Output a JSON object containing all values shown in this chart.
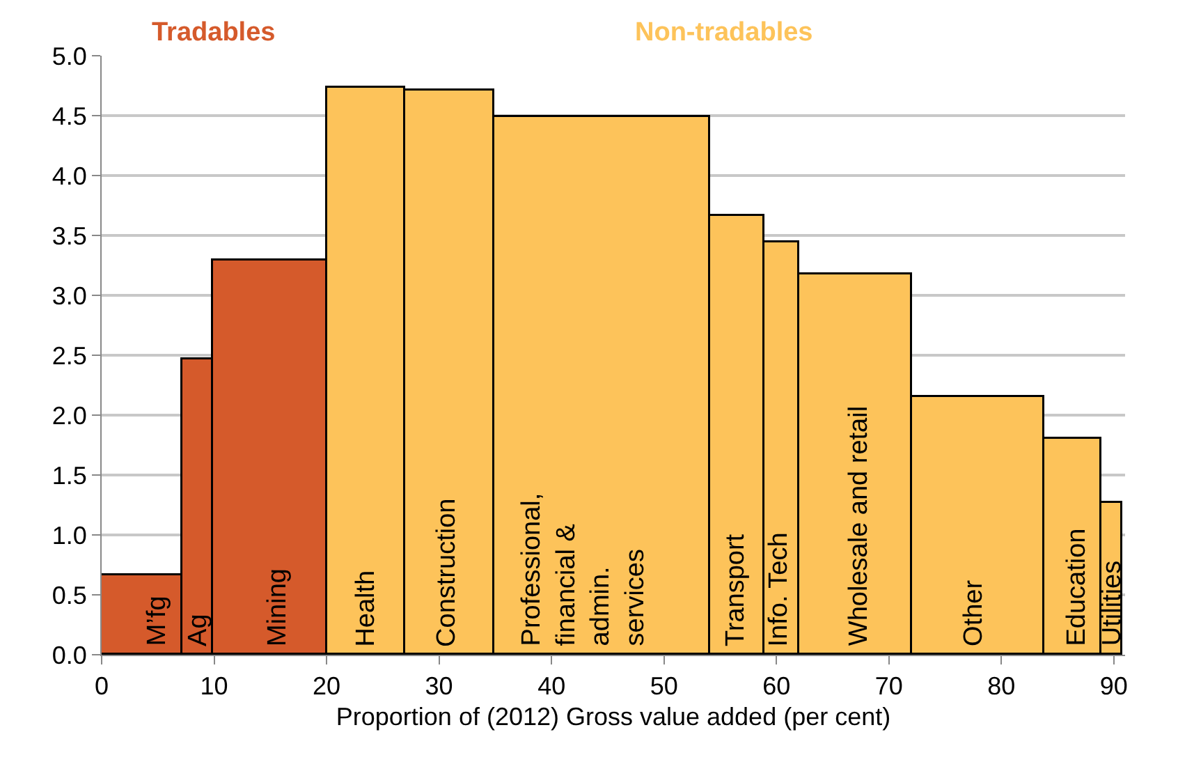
{
  "chart_data": {
    "type": "histogram",
    "bins": [
      0,
      7.2,
      9.9,
      20.0,
      27.0,
      34.9,
      54.1,
      58.9,
      62.0,
      72.0,
      83.8,
      88.9,
      90.7
    ],
    "values": [
      0.66,
      2.47,
      3.29,
      4.73,
      4.71,
      4.49,
      3.66,
      3.44,
      3.17,
      2.15,
      1.8,
      1.27
    ],
    "colors": [
      "#d55a2b",
      "#d55a2b",
      "#d55a2b",
      "#fdc35a",
      "#fdc35a",
      "#fdc35a",
      "#fdc35a",
      "#fdc35a",
      "#fdc35a",
      "#fdc35a",
      "#fdc35a",
      "#fdc35a"
    ],
    "xlabel": "Proportion of (2012) Gross value added (per cent)",
    "xlim": [
      0,
      91
    ],
    "xticks": [
      0,
      10,
      20,
      30,
      40,
      50,
      60,
      70,
      80,
      90
    ],
    "ylim": [
      0,
      5
    ],
    "yticks": [
      {
        "value": 0,
        "label": "0.0"
      },
      {
        "value": 0.5,
        "label": "0.5"
      },
      {
        "value": 1,
        "label": "1.0"
      },
      {
        "value": 1.5,
        "label": "1.5"
      },
      {
        "value": 2,
        "label": "2.0"
      },
      {
        "value": 2.5,
        "label": "2.5"
      },
      {
        "value": 3,
        "label": "3.0"
      },
      {
        "value": 3.5,
        "label": "3.5"
      },
      {
        "value": 4,
        "label": "4.0"
      },
      {
        "value": 4.5,
        "label": "4.5"
      },
      {
        "value": 5,
        "label": "5.0"
      }
    ],
    "grid": "y",
    "annotations": [
      "Tradables",
      "Non-tradables",
      {
        "text": "M’fg",
        "x": 4.9,
        "y": 0
      },
      {
        "text": "Ag",
        "x": 8.6,
        "y": 0
      },
      {
        "text": "Mining",
        "x": 15.6,
        "y": 0
      },
      {
        "text": "Health",
        "x": 23.5,
        "y": 0
      },
      {
        "text": "Construction",
        "x": 30.7,
        "y": 0
      },
      {
        "text": "Professional,\nfinancial &\nadmin.\nservices",
        "x": 42.8,
        "y": 0
      },
      {
        "text": "Transport",
        "x": 56.4,
        "y": 0
      },
      {
        "text": "Info. Tech",
        "x": 60.2,
        "y": 0
      },
      {
        "text": "Wholesale and retail",
        "x": 67.3,
        "y": 0
      },
      {
        "text": "Other",
        "x": 77.5,
        "y": 0
      },
      {
        "text": "Education",
        "x": 86.7,
        "y": 0
      },
      {
        "text": "Utilities",
        "x": 89.9,
        "y": 0
      }
    ]
  }
}
